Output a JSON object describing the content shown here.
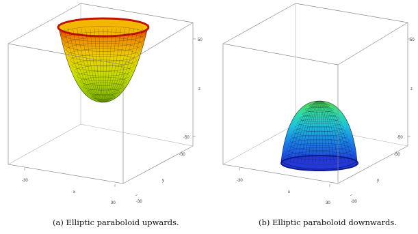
{
  "panels": [
    {
      "caption": "(a) Elliptic paraboloid upwards.",
      "ticks": {
        "x_min": "-30",
        "x_max": "30",
        "x_label": "x",
        "y_min": "-30",
        "y_max": "30",
        "y_label": "y",
        "z_min": "-50",
        "z_max": "50",
        "z_label": "z"
      },
      "surface": {
        "direction": "upwards",
        "colormap": [
          "#7ab800",
          "#c8e000",
          "#f0d000",
          "#f28a00",
          "#e01000"
        ]
      }
    },
    {
      "caption": "(b) Elliptic paraboloid downwards.",
      "ticks": {
        "x_min": "-30",
        "x_max": "30",
        "x_label": "x",
        "y_min": "-30",
        "y_max": "30",
        "y_label": "y",
        "z_min": "-50",
        "z_max": "50",
        "z_label": "z"
      },
      "surface": {
        "direction": "downwards",
        "colormap": [
          "#1e3fe0",
          "#1a7de8",
          "#1fc6d8",
          "#35de9a",
          "#55d040"
        ]
      }
    }
  ]
}
